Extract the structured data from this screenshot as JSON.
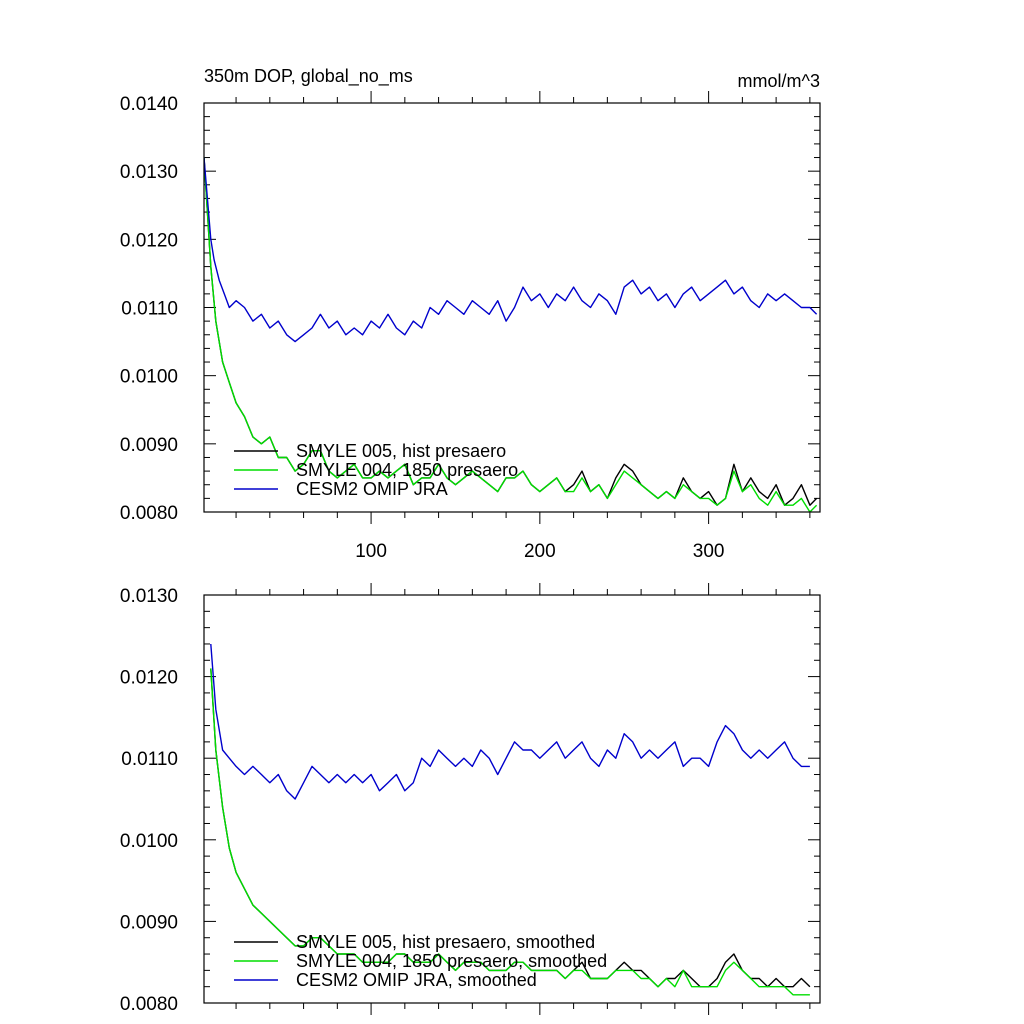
{
  "chart_data": [
    {
      "type": "line",
      "title": "350m DOP, global_no_ms",
      "units": "mmol/m^3",
      "xlim": [
        1,
        366
      ],
      "ylim": [
        0.008,
        0.014
      ],
      "yticks": [
        "0.0080",
        "0.0090",
        "0.0100",
        "0.0110",
        "0.0120",
        "0.0130",
        "0.0140"
      ],
      "xticks": [
        "100",
        "200",
        "300"
      ],
      "legend_position": "bottom-left",
      "series": [
        {
          "name": "SMYLE 005, hist presaero",
          "color": "#000000",
          "x": [
            1,
            3,
            5,
            8,
            12,
            16,
            20,
            25,
            30,
            35,
            40,
            45,
            50,
            55,
            60,
            65,
            70,
            75,
            80,
            85,
            90,
            95,
            100,
            105,
            110,
            115,
            120,
            125,
            130,
            135,
            140,
            145,
            150,
            155,
            160,
            165,
            170,
            175,
            180,
            185,
            190,
            195,
            200,
            205,
            210,
            215,
            220,
            225,
            230,
            235,
            240,
            245,
            250,
            255,
            260,
            265,
            270,
            275,
            280,
            285,
            290,
            295,
            300,
            305,
            310,
            315,
            320,
            325,
            330,
            335,
            340,
            345,
            350,
            355,
            360,
            364
          ],
          "values": [
            0.0132,
            0.0124,
            0.0116,
            0.0108,
            0.0102,
            0.0099,
            0.0096,
            0.0094,
            0.0091,
            0.009,
            0.0091,
            0.0088,
            0.0088,
            0.0086,
            0.0087,
            0.0089,
            0.0089,
            0.0086,
            0.0085,
            0.0086,
            0.0087,
            0.0085,
            0.0085,
            0.0086,
            0.0085,
            0.0086,
            0.0087,
            0.0084,
            0.0085,
            0.0085,
            0.0087,
            0.0085,
            0.0084,
            0.0085,
            0.0086,
            0.0085,
            0.0084,
            0.0083,
            0.0085,
            0.0085,
            0.0086,
            0.0084,
            0.0083,
            0.0084,
            0.0085,
            0.0083,
            0.0084,
            0.0086,
            0.0083,
            0.0084,
            0.0082,
            0.0085,
            0.0087,
            0.0086,
            0.0084,
            0.0083,
            0.0082,
            0.0083,
            0.0082,
            0.0085,
            0.0083,
            0.0082,
            0.0083,
            0.0081,
            0.0082,
            0.0087,
            0.0083,
            0.0085,
            0.0083,
            0.0082,
            0.0084,
            0.0081,
            0.0082,
            0.0084,
            0.0081,
            0.0082
          ]
        },
        {
          "name": "SMYLE 004, 1850 presaero",
          "color": "#00dd00",
          "x": [
            1,
            3,
            5,
            8,
            12,
            16,
            20,
            25,
            30,
            35,
            40,
            45,
            50,
            55,
            60,
            65,
            70,
            75,
            80,
            85,
            90,
            95,
            100,
            105,
            110,
            115,
            120,
            125,
            130,
            135,
            140,
            145,
            150,
            155,
            160,
            165,
            170,
            175,
            180,
            185,
            190,
            195,
            200,
            205,
            210,
            215,
            220,
            225,
            230,
            235,
            240,
            245,
            250,
            255,
            260,
            265,
            270,
            275,
            280,
            285,
            290,
            295,
            300,
            305,
            310,
            315,
            320,
            325,
            330,
            335,
            340,
            345,
            350,
            355,
            360,
            364
          ],
          "values": [
            0.0132,
            0.0124,
            0.0116,
            0.0108,
            0.0102,
            0.0099,
            0.0096,
            0.0094,
            0.0091,
            0.009,
            0.0091,
            0.0088,
            0.0088,
            0.0086,
            0.0087,
            0.0089,
            0.0089,
            0.0086,
            0.0085,
            0.0086,
            0.0087,
            0.0085,
            0.0085,
            0.0086,
            0.0085,
            0.0086,
            0.0087,
            0.0084,
            0.0085,
            0.0085,
            0.0087,
            0.0085,
            0.0084,
            0.0085,
            0.0086,
            0.0085,
            0.0084,
            0.0083,
            0.0085,
            0.0085,
            0.0086,
            0.0084,
            0.0083,
            0.0084,
            0.0085,
            0.0083,
            0.0083,
            0.0085,
            0.0083,
            0.0084,
            0.0082,
            0.0084,
            0.0086,
            0.0085,
            0.0084,
            0.0083,
            0.0082,
            0.0083,
            0.0082,
            0.0084,
            0.0083,
            0.0082,
            0.0082,
            0.0081,
            0.0082,
            0.0086,
            0.0083,
            0.0084,
            0.0082,
            0.0081,
            0.0083,
            0.0081,
            0.0081,
            0.0082,
            0.008,
            0.0081
          ]
        },
        {
          "name": "CESM2 OMIP JRA",
          "color": "#0000cc",
          "x": [
            1,
            3,
            5,
            7,
            10,
            13,
            16,
            20,
            25,
            30,
            35,
            40,
            45,
            50,
            55,
            60,
            65,
            70,
            75,
            80,
            85,
            90,
            95,
            100,
            105,
            110,
            115,
            120,
            125,
            130,
            135,
            140,
            145,
            150,
            155,
            160,
            165,
            170,
            175,
            180,
            185,
            190,
            195,
            200,
            205,
            210,
            215,
            220,
            225,
            230,
            235,
            240,
            245,
            250,
            255,
            260,
            265,
            270,
            275,
            280,
            285,
            290,
            295,
            300,
            305,
            310,
            315,
            320,
            325,
            330,
            335,
            340,
            345,
            350,
            355,
            360,
            364
          ],
          "values": [
            0.0132,
            0.0126,
            0.012,
            0.0117,
            0.0114,
            0.0112,
            0.011,
            0.0111,
            0.011,
            0.0108,
            0.0109,
            0.0107,
            0.0108,
            0.0106,
            0.0105,
            0.0106,
            0.0107,
            0.0109,
            0.0107,
            0.0108,
            0.0106,
            0.0107,
            0.0106,
            0.0108,
            0.0107,
            0.0109,
            0.0107,
            0.0106,
            0.0108,
            0.0107,
            0.011,
            0.0109,
            0.0111,
            0.011,
            0.0109,
            0.0111,
            0.011,
            0.0109,
            0.0111,
            0.0108,
            0.011,
            0.0113,
            0.0111,
            0.0112,
            0.011,
            0.0112,
            0.0111,
            0.0113,
            0.0111,
            0.011,
            0.0112,
            0.0111,
            0.0109,
            0.0113,
            0.0114,
            0.0112,
            0.0113,
            0.0111,
            0.0112,
            0.011,
            0.0112,
            0.0113,
            0.0111,
            0.0112,
            0.0113,
            0.0114,
            0.0112,
            0.0113,
            0.0111,
            0.011,
            0.0112,
            0.0111,
            0.0112,
            0.0111,
            0.011,
            0.011,
            0.0109
          ]
        }
      ]
    },
    {
      "type": "line",
      "xlim": [
        1,
        366
      ],
      "ylim": [
        0.008,
        0.013
      ],
      "yticks": [
        "0.0080",
        "0.0090",
        "0.0100",
        "0.0110",
        "0.0120",
        "0.0130"
      ],
      "legend_position": "bottom-left",
      "series": [
        {
          "name": "SMYLE 005, hist presaero, smoothed",
          "color": "#000000",
          "x": [
            5,
            8,
            12,
            16,
            20,
            25,
            30,
            35,
            40,
            45,
            50,
            55,
            60,
            65,
            70,
            75,
            80,
            85,
            90,
            95,
            100,
            105,
            110,
            115,
            120,
            125,
            130,
            135,
            140,
            145,
            150,
            155,
            160,
            165,
            170,
            175,
            180,
            185,
            190,
            195,
            200,
            205,
            210,
            215,
            220,
            225,
            230,
            235,
            240,
            245,
            250,
            255,
            260,
            265,
            270,
            275,
            280,
            285,
            290,
            295,
            300,
            305,
            310,
            315,
            320,
            325,
            330,
            335,
            340,
            345,
            350,
            355,
            360
          ],
          "values": [
            0.0121,
            0.0111,
            0.0104,
            0.0099,
            0.0096,
            0.0094,
            0.0092,
            0.0091,
            0.009,
            0.0089,
            0.0088,
            0.0087,
            0.0087,
            0.0088,
            0.0088,
            0.0087,
            0.0086,
            0.0086,
            0.0086,
            0.0085,
            0.0085,
            0.0085,
            0.0085,
            0.0086,
            0.0086,
            0.0085,
            0.0085,
            0.0085,
            0.0086,
            0.0085,
            0.0084,
            0.0085,
            0.0085,
            0.0085,
            0.0084,
            0.0084,
            0.0084,
            0.0085,
            0.0085,
            0.0084,
            0.0084,
            0.0084,
            0.0084,
            0.0083,
            0.0084,
            0.0085,
            0.0083,
            0.0083,
            0.0083,
            0.0084,
            0.0085,
            0.0084,
            0.0084,
            0.0083,
            0.0082,
            0.0083,
            0.0083,
            0.0084,
            0.0083,
            0.0082,
            0.0082,
            0.0083,
            0.0085,
            0.0086,
            0.0084,
            0.0083,
            0.0083,
            0.0082,
            0.0083,
            0.0082,
            0.0082,
            0.0083,
            0.0082
          ]
        },
        {
          "name": "SMYLE 004, 1850 presaero, smoothed",
          "color": "#00dd00",
          "x": [
            5,
            8,
            12,
            16,
            20,
            25,
            30,
            35,
            40,
            45,
            50,
            55,
            60,
            65,
            70,
            75,
            80,
            85,
            90,
            95,
            100,
            105,
            110,
            115,
            120,
            125,
            130,
            135,
            140,
            145,
            150,
            155,
            160,
            165,
            170,
            175,
            180,
            185,
            190,
            195,
            200,
            205,
            210,
            215,
            220,
            225,
            230,
            235,
            240,
            245,
            250,
            255,
            260,
            265,
            270,
            275,
            280,
            285,
            290,
            295,
            300,
            305,
            310,
            315,
            320,
            325,
            330,
            335,
            340,
            345,
            350,
            355,
            360
          ],
          "values": [
            0.0121,
            0.0111,
            0.0104,
            0.0099,
            0.0096,
            0.0094,
            0.0092,
            0.0091,
            0.009,
            0.0089,
            0.0088,
            0.0087,
            0.0087,
            0.0088,
            0.0088,
            0.0087,
            0.0086,
            0.0086,
            0.0086,
            0.0085,
            0.0085,
            0.0085,
            0.0085,
            0.0086,
            0.0086,
            0.0085,
            0.0085,
            0.0085,
            0.0086,
            0.0085,
            0.0084,
            0.0085,
            0.0085,
            0.0085,
            0.0084,
            0.0084,
            0.0084,
            0.0085,
            0.0085,
            0.0084,
            0.0084,
            0.0084,
            0.0084,
            0.0083,
            0.0084,
            0.0084,
            0.0083,
            0.0083,
            0.0083,
            0.0084,
            0.0084,
            0.0084,
            0.0083,
            0.0083,
            0.0082,
            0.0083,
            0.0082,
            0.0084,
            0.0082,
            0.0082,
            0.0082,
            0.0082,
            0.0084,
            0.0085,
            0.0084,
            0.0083,
            0.0082,
            0.0082,
            0.0082,
            0.0082,
            0.0081,
            0.0081,
            0.0081
          ]
        },
        {
          "name": "CESM2 OMIP JRA, smoothed",
          "color": "#0000cc",
          "x": [
            5,
            8,
            12,
            16,
            20,
            25,
            30,
            35,
            40,
            45,
            50,
            55,
            60,
            65,
            70,
            75,
            80,
            85,
            90,
            95,
            100,
            105,
            110,
            115,
            120,
            125,
            130,
            135,
            140,
            145,
            150,
            155,
            160,
            165,
            170,
            175,
            180,
            185,
            190,
            195,
            200,
            205,
            210,
            215,
            220,
            225,
            230,
            235,
            240,
            245,
            250,
            255,
            260,
            265,
            270,
            275,
            280,
            285,
            290,
            295,
            300,
            305,
            310,
            315,
            320,
            325,
            330,
            335,
            340,
            345,
            350,
            355,
            360
          ],
          "values": [
            0.0124,
            0.0116,
            0.0111,
            0.011,
            0.0109,
            0.0108,
            0.0109,
            0.0108,
            0.0107,
            0.0108,
            0.0106,
            0.0105,
            0.0107,
            0.0109,
            0.0108,
            0.0107,
            0.0108,
            0.0107,
            0.0108,
            0.0107,
            0.0108,
            0.0106,
            0.0107,
            0.0108,
            0.0106,
            0.0107,
            0.011,
            0.0109,
            0.0111,
            0.011,
            0.0109,
            0.011,
            0.0109,
            0.0111,
            0.011,
            0.0108,
            0.011,
            0.0112,
            0.0111,
            0.0111,
            0.011,
            0.0111,
            0.0112,
            0.011,
            0.0111,
            0.0112,
            0.011,
            0.0109,
            0.0111,
            0.011,
            0.0113,
            0.0112,
            0.011,
            0.0111,
            0.011,
            0.0111,
            0.0112,
            0.0109,
            0.011,
            0.011,
            0.0109,
            0.0112,
            0.0114,
            0.0113,
            0.0111,
            0.011,
            0.0111,
            0.011,
            0.0111,
            0.0112,
            0.011,
            0.0109,
            0.0109
          ]
        }
      ]
    }
  ]
}
